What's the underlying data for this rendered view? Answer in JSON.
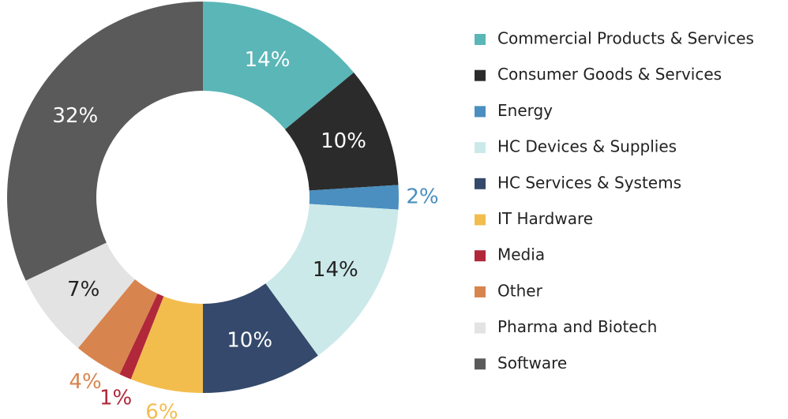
{
  "chart_data": {
    "type": "donut",
    "categories": [
      "Commercial Products & Services",
      "Consumer Goods & Services",
      "Energy",
      "HC Devices & Supplies",
      "HC Services & Systems",
      "IT Hardware",
      "Media",
      "Other",
      "Pharma and Biotech",
      "Software"
    ],
    "values": [
      14,
      10,
      2,
      14,
      10,
      6,
      1,
      4,
      7,
      32
    ],
    "value_labels": [
      "14%",
      "10%",
      "2%",
      "14%",
      "10%",
      "6%",
      "1%",
      "4%",
      "7%",
      "32%"
    ],
    "colors": [
      "#5bb6b7",
      "#2b2b2b",
      "#4a8fbf",
      "#cce9ea",
      "#34496b",
      "#f3bd4e",
      "#b0283a",
      "#d8844e",
      "#e3e3e3",
      "#5a5a5a"
    ]
  }
}
